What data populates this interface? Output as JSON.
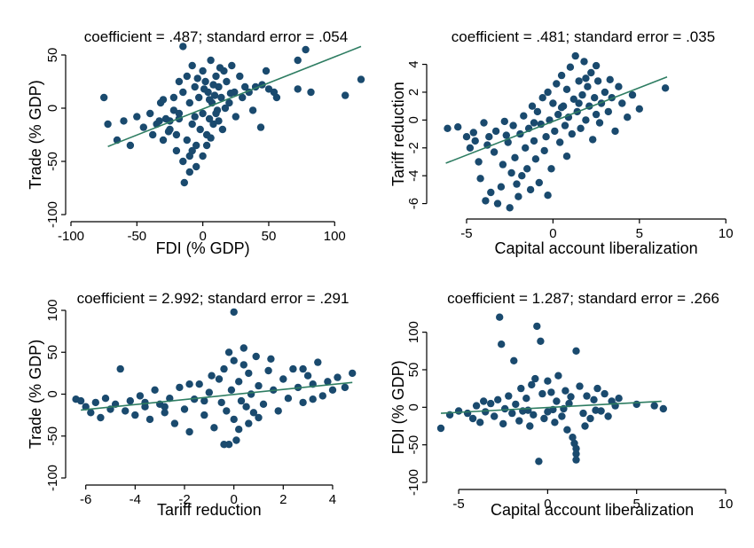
{
  "colors": {
    "marker": "#1a4a6e",
    "fit_line": "#2e7d62",
    "axis": "#000000",
    "background": "#ffffff"
  },
  "chart_data": [
    {
      "type": "scatter",
      "title": "coefficient = .487; standard error = .054",
      "xlabel": "FDI (% GDP)",
      "ylabel": "Trade (% GDP)",
      "xlim": [
        -100,
        120
      ],
      "ylim": [
        -100,
        60
      ],
      "xticks": [
        -100,
        -50,
        0,
        50,
        100
      ],
      "yticks": [
        50,
        0,
        -50,
        -100
      ],
      "grid": false,
      "fit_line": {
        "x": [
          -72,
          120
        ],
        "y": [
          -36,
          58
        ]
      },
      "points": [
        [
          -75,
          10
        ],
        [
          -72,
          -15
        ],
        [
          -65,
          -30
        ],
        [
          -60,
          -12
        ],
        [
          -55,
          -35
        ],
        [
          -50,
          -8
        ],
        [
          -45,
          -18
        ],
        [
          -40,
          -5
        ],
        [
          -38,
          -25
        ],
        [
          -35,
          -15
        ],
        [
          -32,
          5
        ],
        [
          -30,
          -30
        ],
        [
          -28,
          -10
        ],
        [
          -25,
          -20
        ],
        [
          -22,
          10
        ],
        [
          -20,
          -40
        ],
        [
          -18,
          -5
        ],
        [
          -18,
          25
        ],
        [
          -15,
          -50
        ],
        [
          -15,
          15
        ],
        [
          -12,
          -30
        ],
        [
          -12,
          30
        ],
        [
          -10,
          -60
        ],
        [
          -10,
          -45
        ],
        [
          -10,
          5
        ],
        [
          -8,
          40
        ],
        [
          -8,
          -15
        ],
        [
          -6,
          20
        ],
        [
          -5,
          -35
        ],
        [
          -5,
          -55
        ],
        [
          -3,
          10
        ],
        [
          -2,
          -20
        ],
        [
          0,
          35
        ],
        [
          0,
          -5
        ],
        [
          2,
          25
        ],
        [
          3,
          -25
        ],
        [
          4,
          15
        ],
        [
          5,
          -10
        ],
        [
          6,
          45
        ],
        [
          7,
          5
        ],
        [
          8,
          -15
        ],
        [
          10,
          30
        ],
        [
          10,
          -5
        ],
        [
          12,
          20
        ],
        [
          14,
          10
        ],
        [
          15,
          -20
        ],
        [
          16,
          35
        ],
        [
          18,
          25
        ],
        [
          20,
          5
        ],
        [
          22,
          40
        ],
        [
          24,
          15
        ],
        [
          25,
          -8
        ],
        [
          28,
          30
        ],
        [
          30,
          10
        ],
        [
          32,
          20
        ],
        [
          35,
          15
        ],
        [
          40,
          20
        ],
        [
          45,
          22
        ],
        [
          50,
          18
        ],
        [
          -15,
          58
        ],
        [
          -25,
          -12
        ],
        [
          -20,
          -25
        ],
        [
          -8,
          -40
        ],
        [
          -4,
          28
        ],
        [
          0,
          -45
        ],
        [
          3,
          -35
        ],
        [
          6,
          -28
        ],
        [
          9,
          12
        ],
        [
          12,
          -12
        ],
        [
          -14,
          -70
        ],
        [
          -30,
          8
        ],
        [
          -18,
          -10
        ],
        [
          -6,
          -8
        ],
        [
          1,
          18
        ],
        [
          5,
          8
        ],
        [
          8,
          22
        ],
        [
          11,
          -2
        ],
        [
          13,
          38
        ],
        [
          17,
          0
        ],
        [
          21,
          14
        ],
        [
          -22,
          -2
        ],
        [
          -26,
          -22
        ],
        [
          -33,
          -12
        ],
        [
          78,
          55
        ],
        [
          72,
          45
        ],
        [
          72,
          18
        ],
        [
          82,
          15
        ],
        [
          108,
          12
        ],
        [
          120,
          27
        ],
        [
          54,
          15
        ],
        [
          44,
          -18
        ],
        [
          38,
          -2
        ],
        [
          48,
          35
        ],
        [
          56,
          10
        ]
      ]
    },
    {
      "type": "scatter",
      "title": "coefficient = .481; standard error = .035",
      "xlabel": "Capital account liberalization",
      "ylabel": "Tariff reduction",
      "xlim": [
        -7,
        10.5
      ],
      "ylim": [
        -6.6,
        4.8
      ],
      "xticks": [
        -5,
        0,
        5,
        10
      ],
      "yticks": [
        4,
        2,
        0,
        -2,
        -4,
        -6
      ],
      "grid": false,
      "fit_line": {
        "x": [
          -6.2,
          6.6
        ],
        "y": [
          -3.1,
          3.1
        ]
      },
      "points": [
        [
          -6.1,
          -0.6
        ],
        [
          -5.5,
          -0.5
        ],
        [
          -5.0,
          -1.2
        ],
        [
          -4.8,
          -2.0
        ],
        [
          -4.5,
          -1.5
        ],
        [
          -4.3,
          -3.0
        ],
        [
          -4.2,
          -4.2
        ],
        [
          -4.0,
          -0.2
        ],
        [
          -3.9,
          -5.8
        ],
        [
          -3.7,
          -1.2
        ],
        [
          -3.6,
          -5.2
        ],
        [
          -3.4,
          -2.3
        ],
        [
          -3.3,
          -0.8
        ],
        [
          -3.2,
          -6.0
        ],
        [
          -3.0,
          -4.8
        ],
        [
          -2.9,
          -3.2
        ],
        [
          -2.8,
          -0.1
        ],
        [
          -2.6,
          -1.6
        ],
        [
          -2.5,
          -6.3
        ],
        [
          -2.4,
          -3.8
        ],
        [
          -2.3,
          -0.4
        ],
        [
          -2.2,
          -2.7
        ],
        [
          -2.0,
          -5.5
        ],
        [
          -1.9,
          -1.0
        ],
        [
          -1.8,
          -4.0
        ],
        [
          -1.7,
          0.3
        ],
        [
          -1.6,
          -2.0
        ],
        [
          -1.5,
          -3.5
        ],
        [
          -1.4,
          -0.6
        ],
        [
          -1.3,
          -5.0
        ],
        [
          -1.2,
          1.0
        ],
        [
          -1.1,
          -1.5
        ],
        [
          -1.0,
          -2.8
        ],
        [
          -0.9,
          0.6
        ],
        [
          -0.8,
          -4.5
        ],
        [
          -0.7,
          -0.3
        ],
        [
          -0.6,
          1.6
        ],
        [
          -0.5,
          -2.2
        ],
        [
          -0.4,
          -1.2
        ],
        [
          -0.3,
          2.0
        ],
        [
          -0.2,
          0.0
        ],
        [
          -0.1,
          -3.5
        ],
        [
          0.0,
          1.2
        ],
        [
          0.1,
          -0.8
        ],
        [
          0.2,
          2.6
        ],
        [
          0.3,
          0.4
        ],
        [
          0.4,
          -1.6
        ],
        [
          0.5,
          3.2
        ],
        [
          0.6,
          1.0
        ],
        [
          0.7,
          -0.4
        ],
        [
          0.8,
          2.2
        ],
        [
          0.9,
          0.2
        ],
        [
          1.0,
          3.8
        ],
        [
          1.1,
          -1.0
        ],
        [
          1.2,
          1.5
        ],
        [
          1.3,
          4.6
        ],
        [
          1.4,
          0.6
        ],
        [
          1.5,
          2.8
        ],
        [
          1.6,
          -0.6
        ],
        [
          1.7,
          1.8
        ],
        [
          1.8,
          4.2
        ],
        [
          1.9,
          0.0
        ],
        [
          2.0,
          2.4
        ],
        [
          2.1,
          1.0
        ],
        [
          2.2,
          3.4
        ],
        [
          2.3,
          -1.4
        ],
        [
          2.4,
          1.6
        ],
        [
          2.5,
          0.4
        ],
        [
          2.6,
          2.8
        ],
        [
          2.7,
          -0.2
        ],
        [
          2.8,
          1.2
        ],
        [
          3.0,
          2.0
        ],
        [
          3.2,
          0.6
        ],
        [
          3.4,
          1.6
        ],
        [
          3.6,
          -0.8
        ],
        [
          3.8,
          2.4
        ],
        [
          4.0,
          1.2
        ],
        [
          4.3,
          0.2
        ],
        [
          4.6,
          1.8
        ],
        [
          5.0,
          0.8
        ],
        [
          6.5,
          2.3
        ],
        [
          -4.6,
          -0.9
        ],
        [
          -3.8,
          -1.8
        ],
        [
          -2.7,
          -1.1
        ],
        [
          -1.1,
          -0.2
        ],
        [
          0.5,
          0.9
        ],
        [
          1.5,
          1.2
        ],
        [
          2.5,
          3.9
        ],
        [
          3.3,
          2.9
        ],
        [
          -0.3,
          -5.4
        ],
        [
          0.8,
          -2.6
        ],
        [
          -2.1,
          -4.6
        ],
        [
          1.9,
          3.0
        ]
      ]
    },
    {
      "type": "scatter",
      "title": "coefficient = 2.992; standard error = .291",
      "xlabel": "Tariff reduction",
      "ylabel": "Trade (% GDP)",
      "xlim": [
        -6.6,
        4.9
      ],
      "ylim": [
        -100,
        100
      ],
      "xticks": [
        -6,
        -4,
        -2,
        0,
        2,
        4
      ],
      "yticks": [
        100,
        50,
        0,
        -50,
        -100
      ],
      "grid": false,
      "fit_line": {
        "x": [
          -6.2,
          4.8
        ],
        "y": [
          -19,
          14
        ]
      },
      "points": [
        [
          -6.2,
          -8
        ],
        [
          -6.0,
          -15
        ],
        [
          -5.8,
          -22
        ],
        [
          -5.6,
          -10
        ],
        [
          -5.4,
          -28
        ],
        [
          -5.2,
          -5
        ],
        [
          -5.0,
          -18
        ],
        [
          -4.8,
          -12
        ],
        [
          -4.6,
          30
        ],
        [
          -4.4,
          -20
        ],
        [
          -4.2,
          -8
        ],
        [
          -4.0,
          -25
        ],
        [
          -3.8,
          -2
        ],
        [
          -3.6,
          -15
        ],
        [
          -3.4,
          -30
        ],
        [
          -3.2,
          5
        ],
        [
          -3.0,
          -12
        ],
        [
          -2.8,
          -22
        ],
        [
          -2.6,
          -5
        ],
        [
          -2.4,
          -35
        ],
        [
          -2.2,
          8
        ],
        [
          -2.0,
          -18
        ],
        [
          -1.8,
          -45
        ],
        [
          -1.6,
          -6
        ],
        [
          -1.4,
          12
        ],
        [
          -1.2,
          -25
        ],
        [
          -1.0,
          2
        ],
        [
          -0.8,
          -40
        ],
        [
          -0.6,
          18
        ],
        [
          -0.5,
          -10
        ],
        [
          -0.4,
          30
        ],
        [
          -0.3,
          -20
        ],
        [
          -0.2,
          -60
        ],
        [
          -0.1,
          5
        ],
        [
          0.0,
          98
        ],
        [
          0.0,
          40
        ],
        [
          0.0,
          -30
        ],
        [
          0.1,
          -55
        ],
        [
          0.2,
          15
        ],
        [
          0.3,
          -8
        ],
        [
          0.4,
          35
        ],
        [
          0.5,
          -15
        ],
        [
          0.6,
          25
        ],
        [
          0.7,
          0
        ],
        [
          0.8,
          -22
        ],
        [
          0.9,
          45
        ],
        [
          1.0,
          10
        ],
        [
          1.2,
          -12
        ],
        [
          1.4,
          28
        ],
        [
          1.6,
          5
        ],
        [
          1.8,
          -20
        ],
        [
          2.0,
          18
        ],
        [
          2.2,
          -5
        ],
        [
          2.4,
          30
        ],
        [
          2.6,
          8
        ],
        [
          2.8,
          -10
        ],
        [
          3.0,
          22
        ],
        [
          3.2,
          12
        ],
        [
          3.4,
          38
        ],
        [
          3.6,
          -2
        ],
        [
          3.8,
          15
        ],
        [
          4.0,
          5
        ],
        [
          4.2,
          20
        ],
        [
          4.5,
          8
        ],
        [
          4.8,
          25
        ],
        [
          -3.6,
          -10
        ],
        [
          -2.8,
          -15
        ],
        [
          -1.2,
          -8
        ],
        [
          0.2,
          -42
        ],
        [
          0.6,
          -35
        ],
        [
          1.0,
          -28
        ],
        [
          -0.9,
          22
        ],
        [
          -0.2,
          50
        ],
        [
          0.4,
          55
        ],
        [
          2.8,
          30
        ],
        [
          3.2,
          -6
        ],
        [
          -6.4,
          -6
        ],
        [
          -0.4,
          -60
        ],
        [
          1.5,
          42
        ],
        [
          -1.8,
          12
        ]
      ]
    },
    {
      "type": "scatter",
      "title": "coefficient = 1.287; standard error = .266",
      "xlabel": "Capital account liberalization",
      "ylabel": "FDI (% GDP)",
      "xlim": [
        -6.5,
        10.5
      ],
      "ylim": [
        -100,
        122
      ],
      "xticks": [
        -5,
        0,
        5,
        10
      ],
      "yticks": [
        100,
        50,
        0,
        -50,
        -100
      ],
      "grid": false,
      "fit_line": {
        "x": [
          -6.0,
          6.4
        ],
        "y": [
          -8,
          8
        ]
      },
      "points": [
        [
          -6.0,
          -28
        ],
        [
          -5.5,
          -10
        ],
        [
          -5.0,
          -5
        ],
        [
          -4.5,
          -8
        ],
        [
          -4.2,
          -15
        ],
        [
          -4.0,
          2
        ],
        [
          -3.8,
          -20
        ],
        [
          -3.5,
          -6
        ],
        [
          -3.2,
          5
        ],
        [
          -3.0,
          -12
        ],
        [
          -2.8,
          10
        ],
        [
          -2.6,
          84
        ],
        [
          -2.5,
          -22
        ],
        [
          -2.4,
          -2
        ],
        [
          -2.2,
          15
        ],
        [
          -2.0,
          -8
        ],
        [
          -1.9,
          62
        ],
        [
          -1.8,
          4
        ],
        [
          -1.6,
          -18
        ],
        [
          -1.5,
          25
        ],
        [
          -1.4,
          -5
        ],
        [
          -1.2,
          12
        ],
        [
          -1.0,
          -25
        ],
        [
          -0.9,
          30
        ],
        [
          -0.8,
          -10
        ],
        [
          -0.6,
          108
        ],
        [
          -0.5,
          -72
        ],
        [
          -0.4,
          88
        ],
        [
          -0.3,
          18
        ],
        [
          -0.2,
          -15
        ],
        [
          0.0,
          35
        ],
        [
          0.0,
          -6
        ],
        [
          0.2,
          20
        ],
        [
          0.4,
          -20
        ],
        [
          0.5,
          8
        ],
        [
          0.6,
          42
        ],
        [
          0.8,
          -12
        ],
        [
          1.0,
          22
        ],
        [
          1.1,
          -30
        ],
        [
          1.2,
          5
        ],
        [
          1.4,
          -40
        ],
        [
          1.5,
          -48
        ],
        [
          1.6,
          -55
        ],
        [
          1.6,
          -62
        ],
        [
          1.6,
          -70
        ],
        [
          1.6,
          75
        ],
        [
          1.8,
          28
        ],
        [
          2.0,
          -8
        ],
        [
          2.2,
          15
        ],
        [
          2.4,
          -15
        ],
        [
          2.6,
          10
        ],
        [
          2.8,
          25
        ],
        [
          3.0,
          -5
        ],
        [
          3.2,
          18
        ],
        [
          3.4,
          -12
        ],
        [
          3.6,
          8
        ],
        [
          3.8,
          2
        ],
        [
          4.0,
          12
        ],
        [
          5.0,
          4
        ],
        [
          6.0,
          2
        ],
        [
          6.5,
          -2
        ],
        [
          -2.7,
          120
        ],
        [
          -0.7,
          38
        ],
        [
          0.9,
          -2
        ],
        [
          1.3,
          14
        ],
        [
          2.1,
          -25
        ],
        [
          -3.6,
          8
        ],
        [
          -1.1,
          -4
        ],
        [
          0.3,
          -3
        ],
        [
          2.7,
          -4
        ]
      ]
    }
  ]
}
